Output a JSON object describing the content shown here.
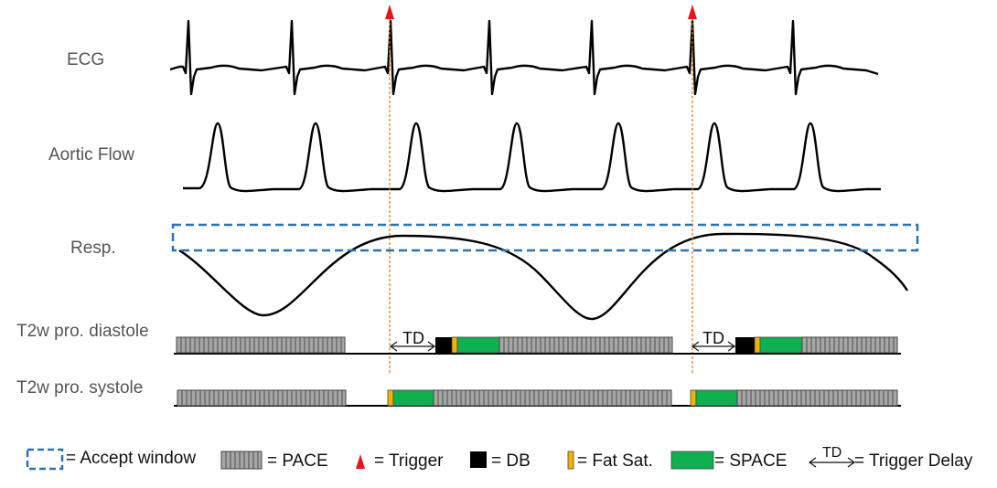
{
  "tracks": {
    "ecg": "ECG",
    "aortic_flow": "Aortic Flow",
    "resp": "Resp.",
    "diastole": "T2w pro. diastole",
    "systole": "T2w pro. systole"
  },
  "annotations": {
    "td": "TD"
  },
  "legend": {
    "accept_window": "= Accept window",
    "pace": "= PACE",
    "trigger": "= Trigger",
    "db": "= DB",
    "fat_sat": "= Fat Sat.",
    "space": "= SPACE",
    "td_symbol": "TD",
    "trigger_delay": "= Trigger Delay"
  },
  "colors": {
    "trigger": "#e8141c",
    "trigger_line": "#e07a1e",
    "accept_window": "#2a72b5",
    "pace": "#a6a6a6",
    "db": "#000000",
    "fat_sat": "#f0b400",
    "space": "#10b050",
    "waveform": "#000000"
  }
}
